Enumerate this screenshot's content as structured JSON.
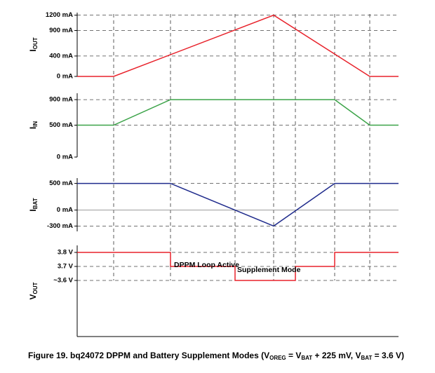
{
  "chart_data": [
    {
      "type": "line",
      "ylabel": [
        "I",
        "OUT"
      ],
      "xlim": [
        0,
        458
      ],
      "ylim": [
        0,
        1250
      ],
      "yticks": [
        {
          "value": 1200,
          "label": "1200 mA"
        },
        {
          "value": 900,
          "label": "900 mA"
        },
        {
          "value": 400,
          "label": "400 mA"
        },
        {
          "value": 0,
          "label": "0 mA"
        }
      ],
      "grid": true,
      "color": "#e8222b",
      "x": [
        0,
        52,
        280,
        417,
        458
      ],
      "values": [
        0,
        0,
        1200,
        0,
        0
      ],
      "vlines": [
        52,
        133,
        225,
        280,
        311,
        367,
        417
      ]
    },
    {
      "type": "line",
      "ylabel": [
        "I",
        "IN"
      ],
      "xlim": [
        0,
        458
      ],
      "ylim": [
        0,
        1000
      ],
      "yticks": [
        {
          "value": 900,
          "label": "900 mA"
        },
        {
          "value": 500,
          "label": "500 mA"
        },
        {
          "value": 0,
          "label": "0 mA"
        }
      ],
      "grid": true,
      "color": "#3ba348",
      "x": [
        0,
        52,
        133,
        367,
        417,
        458
      ],
      "values": [
        500,
        500,
        900,
        900,
        500,
        500
      ]
    },
    {
      "type": "line",
      "ylabel": [
        "I",
        "BAT"
      ],
      "xlim": [
        0,
        458
      ],
      "ylim": [
        -400,
        600
      ],
      "yticks": [
        {
          "value": 500,
          "label": "500 mA"
        },
        {
          "value": 0,
          "label": "0 mA"
        },
        {
          "value": -300,
          "label": "-300 mA"
        }
      ],
      "grid": true,
      "zero_line": true,
      "color": "#1f2b8c",
      "x": [
        0,
        133,
        280,
        367,
        458
      ],
      "values": [
        500,
        500,
        -300,
        500,
        500
      ]
    },
    {
      "type": "line",
      "ylabel": [
        "V",
        "OUT"
      ],
      "xlim": [
        0,
        458
      ],
      "ylim": [
        3.2,
        3.85
      ],
      "yticks": [
        {
          "value": 3.8,
          "label": "3.8 V"
        },
        {
          "value": 3.7,
          "label": "3.7 V"
        },
        {
          "value": 3.6,
          "label": "~3.6 V"
        }
      ],
      "grid": true,
      "color": "#e8222b",
      "x": [
        0,
        133,
        133,
        225,
        225,
        311,
        311,
        367,
        367,
        458
      ],
      "values": [
        3.8,
        3.8,
        3.7,
        3.7,
        3.6,
        3.6,
        3.7,
        3.7,
        3.8,
        3.8
      ],
      "annotations": [
        "DPPM Loop Active",
        "Supplement Mode"
      ]
    }
  ],
  "caption": [
    "Figure 19.  bq24072 DPPM and Battery Supplement Modes (V",
    "OREG",
    " = V",
    "BAT",
    " + 225 mV, V",
    "BAT",
    " = 3.6 V)"
  ]
}
